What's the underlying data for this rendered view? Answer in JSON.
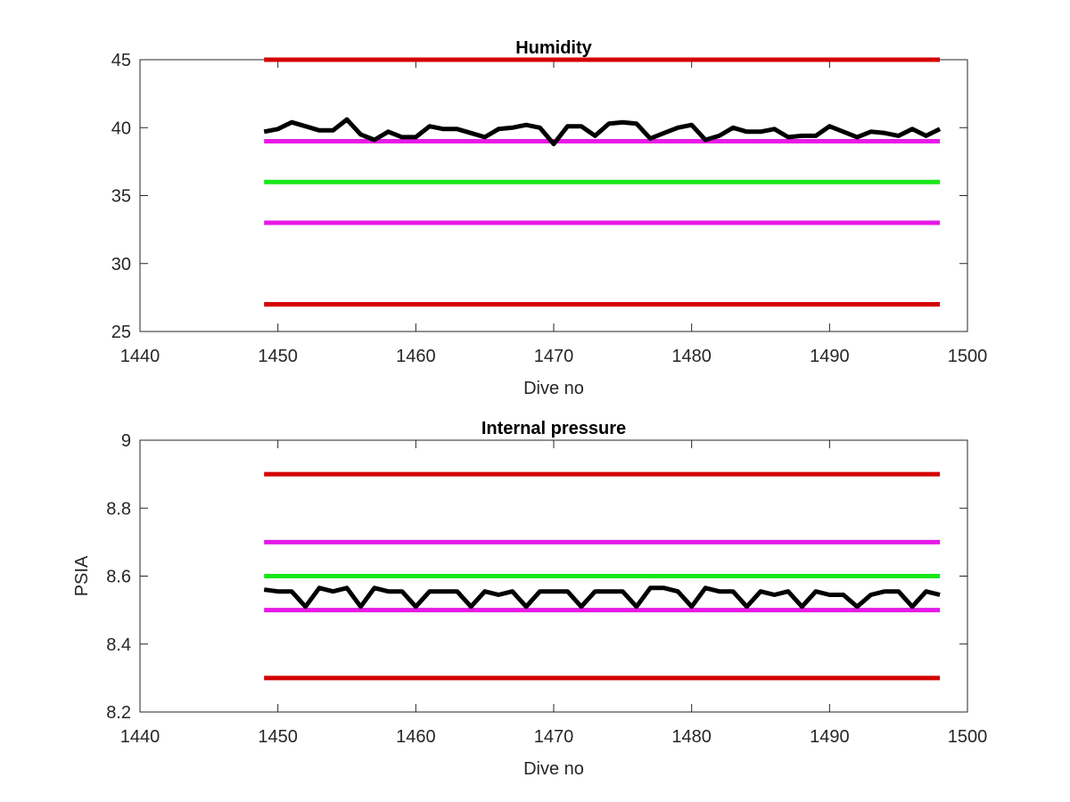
{
  "chart_data": [
    {
      "type": "line",
      "title": "Humidity",
      "xlabel": "Dive no",
      "ylabel": "",
      "xlim": [
        1440,
        1500
      ],
      "ylim": [
        25,
        45
      ],
      "xticks": [
        "1440",
        "1450",
        "1460",
        "1470",
        "1480",
        "1490",
        "1500"
      ],
      "yticks": [
        "25",
        "30",
        "35",
        "40",
        "45"
      ],
      "grid": false,
      "series": [
        {
          "color": "#d40000",
          "x": [
            1449,
            1498
          ],
          "y": [
            45,
            45
          ]
        },
        {
          "color": "#e619e6",
          "x": [
            1449,
            1498
          ],
          "y": [
            39,
            39
          ]
        },
        {
          "color": "#19e619",
          "x": [
            1449,
            1498
          ],
          "y": [
            36,
            36
          ]
        },
        {
          "color": "#e619e6",
          "x": [
            1449,
            1498
          ],
          "y": [
            33,
            33
          ]
        },
        {
          "color": "#d40000",
          "x": [
            1449,
            1498
          ],
          "y": [
            27,
            27
          ]
        },
        {
          "color": "#000000",
          "x": [
            1449,
            1450,
            1451,
            1452,
            1453,
            1454,
            1455,
            1456,
            1457,
            1458,
            1459,
            1460,
            1461,
            1462,
            1463,
            1464,
            1465,
            1466,
            1467,
            1468,
            1469,
            1470,
            1471,
            1472,
            1473,
            1474,
            1475,
            1476,
            1477,
            1478,
            1479,
            1480,
            1481,
            1482,
            1483,
            1484,
            1485,
            1486,
            1487,
            1488,
            1489,
            1490,
            1491,
            1492,
            1493,
            1494,
            1495,
            1496,
            1497,
            1498
          ],
          "y": [
            39.7,
            39.9,
            40.4,
            40.1,
            39.8,
            39.8,
            40.6,
            39.5,
            39.1,
            39.7,
            39.3,
            39.3,
            40.1,
            39.9,
            39.9,
            39.6,
            39.3,
            39.9,
            40.0,
            40.2,
            40.0,
            38.8,
            40.1,
            40.1,
            39.4,
            40.3,
            40.4,
            40.3,
            39.2,
            39.6,
            40.0,
            40.2,
            39.1,
            39.4,
            40.0,
            39.7,
            39.7,
            39.9,
            39.3,
            39.4,
            39.4,
            40.1,
            39.7,
            39.3,
            39.7,
            39.6,
            39.4,
            39.9,
            39.4,
            39.9
          ]
        }
      ]
    },
    {
      "type": "line",
      "title": "Internal pressure",
      "xlabel": "Dive no",
      "ylabel": "PSIA",
      "xlim": [
        1440,
        1500
      ],
      "ylim": [
        8.2,
        9.0
      ],
      "xticks": [
        "1440",
        "1450",
        "1460",
        "1470",
        "1480",
        "1490",
        "1500"
      ],
      "yticks": [
        "8.2",
        "8.4",
        "8.6",
        "8.8",
        "9"
      ],
      "grid": false,
      "series": [
        {
          "color": "#d40000",
          "x": [
            1449,
            1498
          ],
          "y": [
            8.9,
            8.9
          ]
        },
        {
          "color": "#e619e6",
          "x": [
            1449,
            1498
          ],
          "y": [
            8.7,
            8.7
          ]
        },
        {
          "color": "#19e619",
          "x": [
            1449,
            1498
          ],
          "y": [
            8.6,
            8.6
          ]
        },
        {
          "color": "#e619e6",
          "x": [
            1449,
            1498
          ],
          "y": [
            8.5,
            8.5
          ]
        },
        {
          "color": "#d40000",
          "x": [
            1449,
            1498
          ],
          "y": [
            8.3,
            8.3
          ]
        },
        {
          "color": "#000000",
          "x": [
            1449,
            1450,
            1451,
            1452,
            1453,
            1454,
            1455,
            1456,
            1457,
            1458,
            1459,
            1460,
            1461,
            1462,
            1463,
            1464,
            1465,
            1466,
            1467,
            1468,
            1469,
            1470,
            1471,
            1472,
            1473,
            1474,
            1475,
            1476,
            1477,
            1478,
            1479,
            1480,
            1481,
            1482,
            1483,
            1484,
            1485,
            1486,
            1487,
            1488,
            1489,
            1490,
            1491,
            1492,
            1493,
            1494,
            1495,
            1496,
            1497,
            1498
          ],
          "y": [
            8.56,
            8.555,
            8.555,
            8.51,
            8.565,
            8.555,
            8.565,
            8.51,
            8.565,
            8.555,
            8.555,
            8.51,
            8.555,
            8.555,
            8.555,
            8.51,
            8.555,
            8.545,
            8.555,
            8.51,
            8.555,
            8.555,
            8.555,
            8.51,
            8.555,
            8.555,
            8.555,
            8.51,
            8.565,
            8.565,
            8.555,
            8.51,
            8.565,
            8.555,
            8.555,
            8.51,
            8.555,
            8.545,
            8.555,
            8.51,
            8.555,
            8.545,
            8.545,
            8.51,
            8.545,
            8.555,
            8.555,
            8.51,
            8.555,
            8.545
          ]
        }
      ]
    }
  ]
}
